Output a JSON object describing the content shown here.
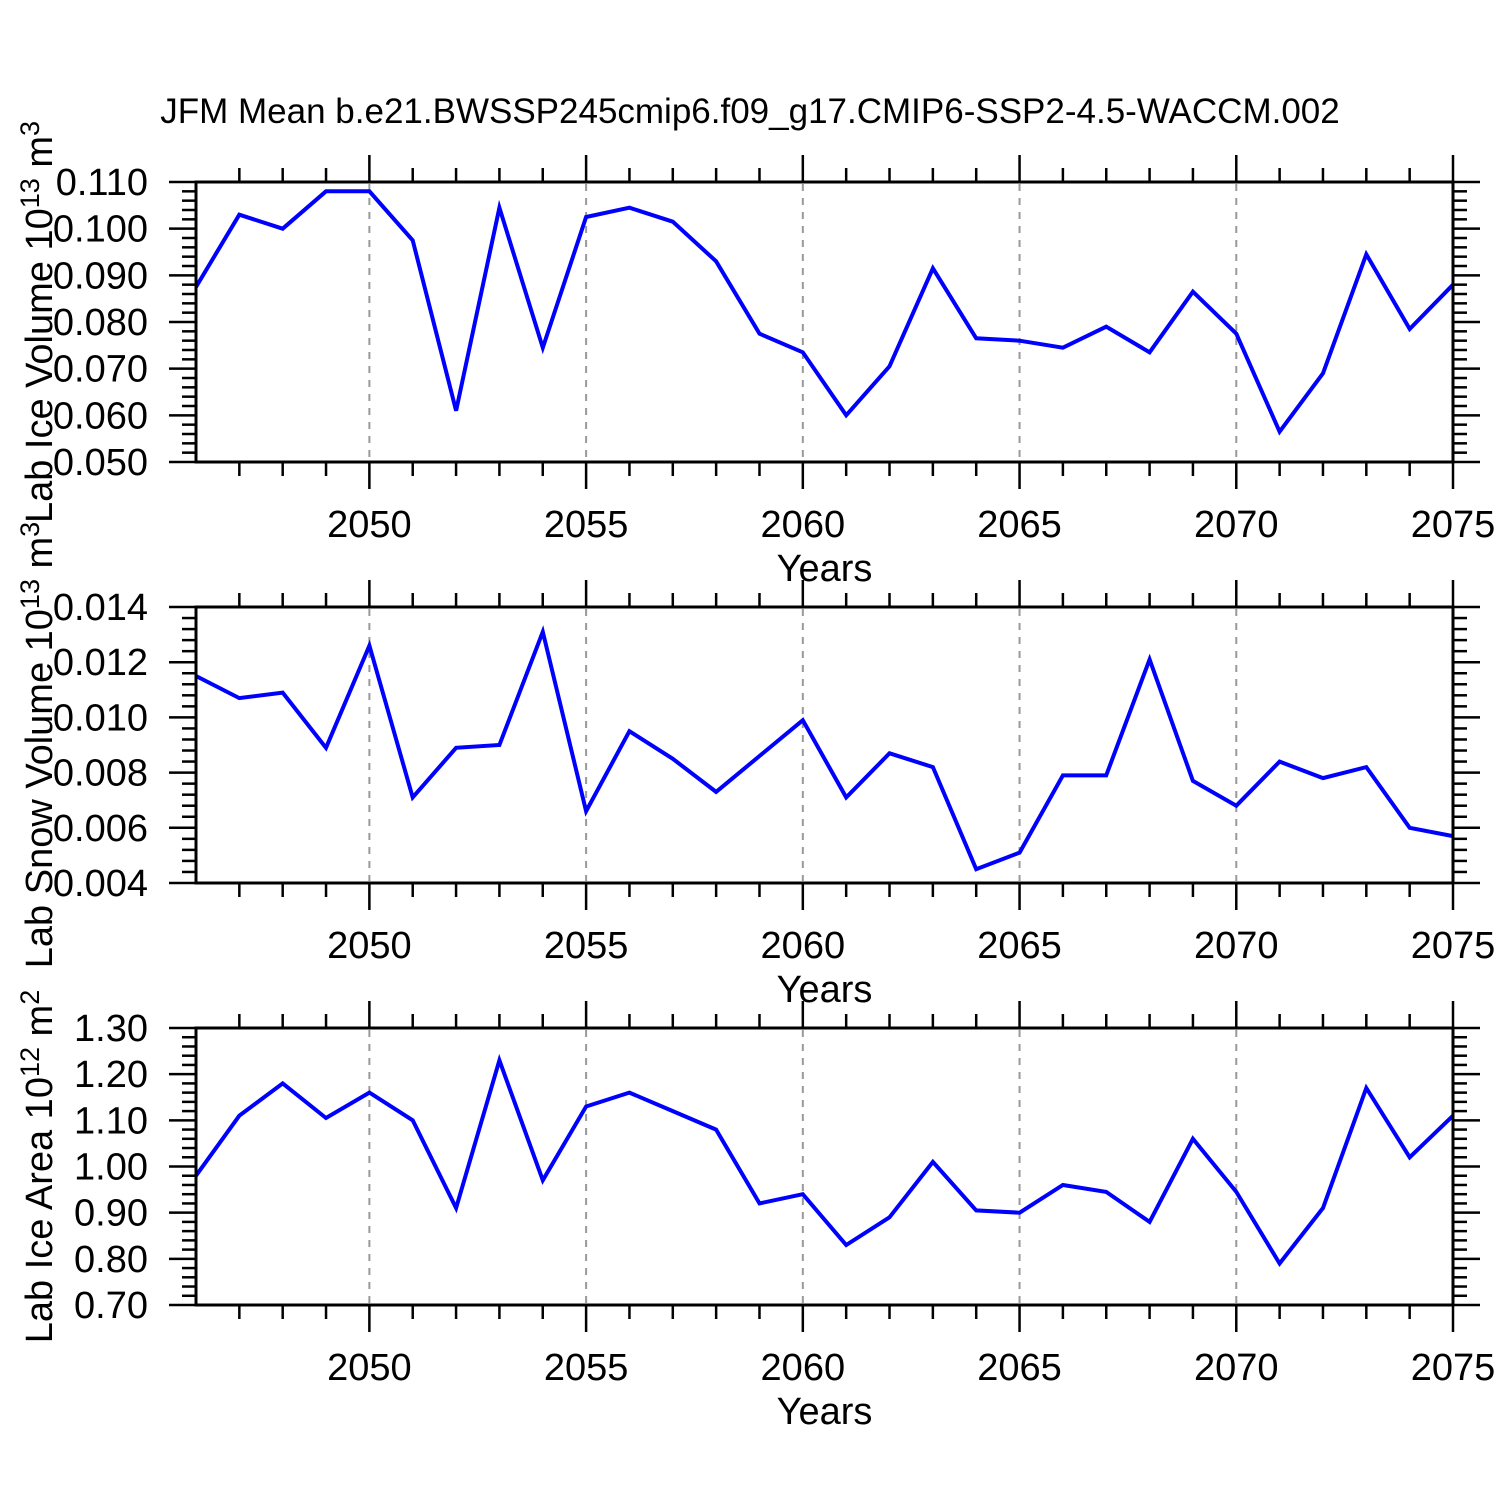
{
  "title": "JFM Mean b.e21.BWSSP245cmip6.f09_g17.CMIP6-SSP2-4.5-WACCM.002",
  "colors": {
    "line": "#0000ff",
    "grid": "#999999",
    "frame": "#000000"
  },
  "chart_data": [
    {
      "type": "line",
      "id": "lab-ice-volume",
      "x": [
        2046,
        2047,
        2048,
        2049,
        2050,
        2051,
        2052,
        2053,
        2054,
        2055,
        2056,
        2057,
        2058,
        2059,
        2060,
        2061,
        2062,
        2063,
        2064,
        2065,
        2066,
        2067,
        2068,
        2069,
        2070,
        2071,
        2072,
        2073,
        2074,
        2075
      ],
      "values": [
        0.0875,
        0.103,
        0.1,
        0.108,
        0.108,
        0.0975,
        0.061,
        0.1045,
        0.0745,
        0.1025,
        0.1045,
        0.1015,
        0.093,
        0.0775,
        0.0735,
        0.06,
        0.0705,
        0.0915,
        0.0765,
        0.076,
        0.0745,
        0.079,
        0.0735,
        0.0865,
        0.0775,
        0.0565,
        0.069,
        0.0945,
        0.0785,
        0.088
      ],
      "xlabel": "Years",
      "ylabel": "Lab Ice Volume 10^13 m^3",
      "ylabel_parts": [
        {
          "t": "Lab Ice Volume 10"
        },
        {
          "t": "13",
          "sup": true
        },
        {
          "t": " m"
        },
        {
          "t": "3",
          "sup": true
        }
      ],
      "xlim": [
        2046,
        2075
      ],
      "ylim": [
        0.05,
        0.11
      ],
      "xticks": [
        2050,
        2055,
        2060,
        2065,
        2070,
        2075
      ],
      "xtick_labels": [
        "2050",
        "2055",
        "2060",
        "2065",
        "2070",
        "2075"
      ],
      "xgrid_dashed": [
        2050,
        2055,
        2060,
        2065,
        2070
      ],
      "yticks": [
        0.05,
        0.06,
        0.07,
        0.08,
        0.09,
        0.1,
        0.11
      ],
      "ytick_labels": [
        "0.050",
        "0.060",
        "0.070",
        "0.080",
        "0.090",
        "0.100",
        "0.110"
      ],
      "ytick_minor_step": 0.002,
      "grid": "x-dashed",
      "legend": "none"
    },
    {
      "type": "line",
      "id": "lab-snow-volume",
      "x": [
        2046,
        2047,
        2048,
        2049,
        2050,
        2051,
        2052,
        2053,
        2054,
        2055,
        2056,
        2057,
        2058,
        2059,
        2060,
        2061,
        2062,
        2063,
        2064,
        2065,
        2066,
        2067,
        2068,
        2069,
        2070,
        2071,
        2072,
        2073,
        2074,
        2075
      ],
      "values": [
        0.0115,
        0.0107,
        0.0109,
        0.0089,
        0.0126,
        0.0071,
        0.0089,
        0.009,
        0.0131,
        0.0066,
        0.0095,
        0.0085,
        0.0073,
        0.0086,
        0.0099,
        0.0071,
        0.0087,
        0.0082,
        0.0045,
        0.0051,
        0.0079,
        0.0079,
        0.0121,
        0.0077,
        0.0068,
        0.0084,
        0.0078,
        0.0082,
        0.006,
        0.0057
      ],
      "xlabel": "Years",
      "ylabel": "Lab Snow Volume 10^13 m^3",
      "ylabel_parts": [
        {
          "t": "Lab Snow Volume 10"
        },
        {
          "t": "13",
          "sup": true
        },
        {
          "t": " m"
        },
        {
          "t": "3",
          "sup": true
        }
      ],
      "xlim": [
        2046,
        2075
      ],
      "ylim": [
        0.004,
        0.014
      ],
      "xticks": [
        2050,
        2055,
        2060,
        2065,
        2070,
        2075
      ],
      "xtick_labels": [
        "2050",
        "2055",
        "2060",
        "2065",
        "2070",
        "2075"
      ],
      "xgrid_dashed": [
        2050,
        2055,
        2060,
        2065,
        2070
      ],
      "yticks": [
        0.004,
        0.006,
        0.008,
        0.01,
        0.012,
        0.014
      ],
      "ytick_labels": [
        "0.004",
        "0.006",
        "0.008",
        "0.010",
        "0.012",
        "0.014"
      ],
      "ytick_minor_step": 0.0004,
      "grid": "x-dashed",
      "legend": "none"
    },
    {
      "type": "line",
      "id": "lab-ice-area",
      "x": [
        2046,
        2047,
        2048,
        2049,
        2050,
        2051,
        2052,
        2053,
        2054,
        2055,
        2056,
        2057,
        2058,
        2059,
        2060,
        2061,
        2062,
        2063,
        2064,
        2065,
        2066,
        2067,
        2068,
        2069,
        2070,
        2071,
        2072,
        2073,
        2074,
        2075
      ],
      "values": [
        0.98,
        1.11,
        1.18,
        1.105,
        1.16,
        1.1,
        0.91,
        1.23,
        0.97,
        1.13,
        1.16,
        1.12,
        1.08,
        0.92,
        0.94,
        0.83,
        0.89,
        1.01,
        0.905,
        0.9,
        0.96,
        0.945,
        0.88,
        1.06,
        0.945,
        0.79,
        0.91,
        1.17,
        1.02,
        1.11
      ],
      "xlabel": "Years",
      "ylabel": "Lab Ice Area 10^12 m^2",
      "ylabel_parts": [
        {
          "t": "Lab Ice Area 10"
        },
        {
          "t": "12",
          "sup": true
        },
        {
          "t": " m"
        },
        {
          "t": "2",
          "sup": true
        }
      ],
      "xlim": [
        2046,
        2075
      ],
      "ylim": [
        0.7,
        1.3
      ],
      "xticks": [
        2050,
        2055,
        2060,
        2065,
        2070,
        2075
      ],
      "xtick_labels": [
        "2050",
        "2055",
        "2060",
        "2065",
        "2070",
        "2075"
      ],
      "xgrid_dashed": [
        2050,
        2055,
        2060,
        2065,
        2070
      ],
      "yticks": [
        0.7,
        0.8,
        0.9,
        1.0,
        1.1,
        1.2,
        1.3
      ],
      "ytick_labels": [
        "0.70",
        "0.80",
        "0.90",
        "1.00",
        "1.10",
        "1.20",
        "1.30"
      ],
      "ytick_minor_step": 0.02,
      "grid": "x-dashed",
      "legend": "none"
    }
  ]
}
